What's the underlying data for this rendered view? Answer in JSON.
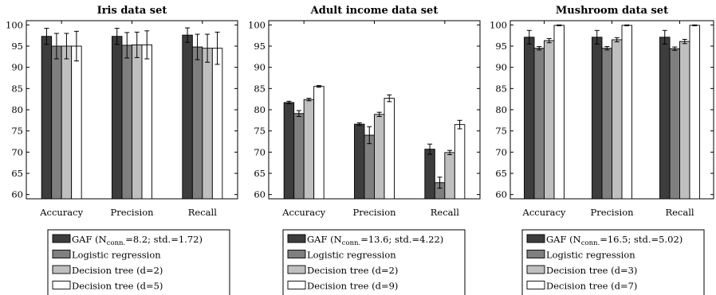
{
  "chart_data": [
    {
      "type": "bar",
      "title": "Iris data set",
      "categories": [
        "Accuracy",
        "Precision",
        "Recall"
      ],
      "ylim": [
        59,
        101
      ],
      "yticks": [
        60,
        65,
        70,
        75,
        80,
        85,
        90,
        95,
        100
      ],
      "grid": false,
      "legend_position": "bottom",
      "series": [
        {
          "name": "GAF (N<sub>conn.</sub>=8.2; std.=1.72)",
          "legend_main": "GAF (N",
          "legend_sub": "conn.",
          "legend_rest": "=8.2; std.=1.72)",
          "values": [
            97.3,
            97.3,
            97.6
          ],
          "errors": [
            1.9,
            1.9,
            1.7
          ]
        },
        {
          "name": "Logistic regression",
          "values": [
            95.0,
            95.2,
            94.8
          ],
          "errors": [
            3.0,
            3.0,
            3.0
          ]
        },
        {
          "name": "Decision tree (d=2)",
          "values": [
            95.0,
            95.3,
            94.5
          ],
          "errors": [
            3.0,
            3.0,
            3.3
          ]
        },
        {
          "name": "Decision tree (d=5)",
          "values": [
            95.0,
            95.3,
            94.5
          ],
          "errors": [
            3.5,
            3.3,
            3.8
          ]
        }
      ]
    },
    {
      "type": "bar",
      "title": "Adult income data set",
      "categories": [
        "Accuracy",
        "Precision",
        "Recall"
      ],
      "ylim": [
        59,
        101
      ],
      "yticks": [
        60,
        65,
        70,
        75,
        80,
        85,
        90,
        95,
        100
      ],
      "grid": false,
      "legend_position": "bottom",
      "series": [
        {
          "name": "GAF (N<sub>conn.</sub>=13.6; std.=4.22)",
          "legend_main": "GAF (N",
          "legend_sub": "conn.",
          "legend_rest": "=13.6; std.=4.22)",
          "values": [
            81.7,
            76.6,
            70.7
          ],
          "errors": [
            0.3,
            0.3,
            1.2
          ]
        },
        {
          "name": "Logistic regression",
          "values": [
            79.1,
            74.0,
            62.8
          ],
          "errors": [
            0.7,
            2.0,
            1.3
          ]
        },
        {
          "name": "Decision tree (d=2)",
          "values": [
            82.4,
            78.9,
            69.9
          ],
          "errors": [
            0.3,
            0.5,
            0.5
          ]
        },
        {
          "name": "Decision tree (d=9)",
          "values": [
            85.5,
            82.7,
            76.5
          ],
          "errors": [
            0.2,
            0.8,
            1.0
          ]
        }
      ]
    },
    {
      "type": "bar",
      "title": "Mushroom data set",
      "categories": [
        "Accuracy",
        "Precision",
        "Recall"
      ],
      "ylim": [
        59,
        101
      ],
      "yticks": [
        60,
        65,
        70,
        75,
        80,
        85,
        90,
        95,
        100
      ],
      "grid": false,
      "legend_position": "bottom",
      "series": [
        {
          "name": "GAF (N<sub>conn.</sub>=16.5; std.=5.02)",
          "legend_main": "GAF (N",
          "legend_sub": "conn.",
          "legend_rest": "=16.5; std.=5.02)",
          "values": [
            97.1,
            97.1,
            97.1
          ],
          "errors": [
            1.6,
            1.6,
            1.6
          ]
        },
        {
          "name": "Logistic regression",
          "values": [
            94.5,
            94.5,
            94.4
          ],
          "errors": [
            0.4,
            0.4,
            0.4
          ]
        },
        {
          "name": "Decision tree (d=3)",
          "values": [
            96.3,
            96.5,
            96.1
          ],
          "errors": [
            0.5,
            0.5,
            0.5
          ]
        },
        {
          "name": "Decision tree (d=7)",
          "values": [
            99.9,
            99.9,
            99.9
          ],
          "errors": [
            0.1,
            0.1,
            0.1
          ]
        }
      ]
    }
  ],
  "colors": {
    "series_fills": [
      "#3d3d3d",
      "#7f7f7f",
      "#bfbfbf",
      "#ffffff"
    ],
    "stroke": "#000000"
  }
}
